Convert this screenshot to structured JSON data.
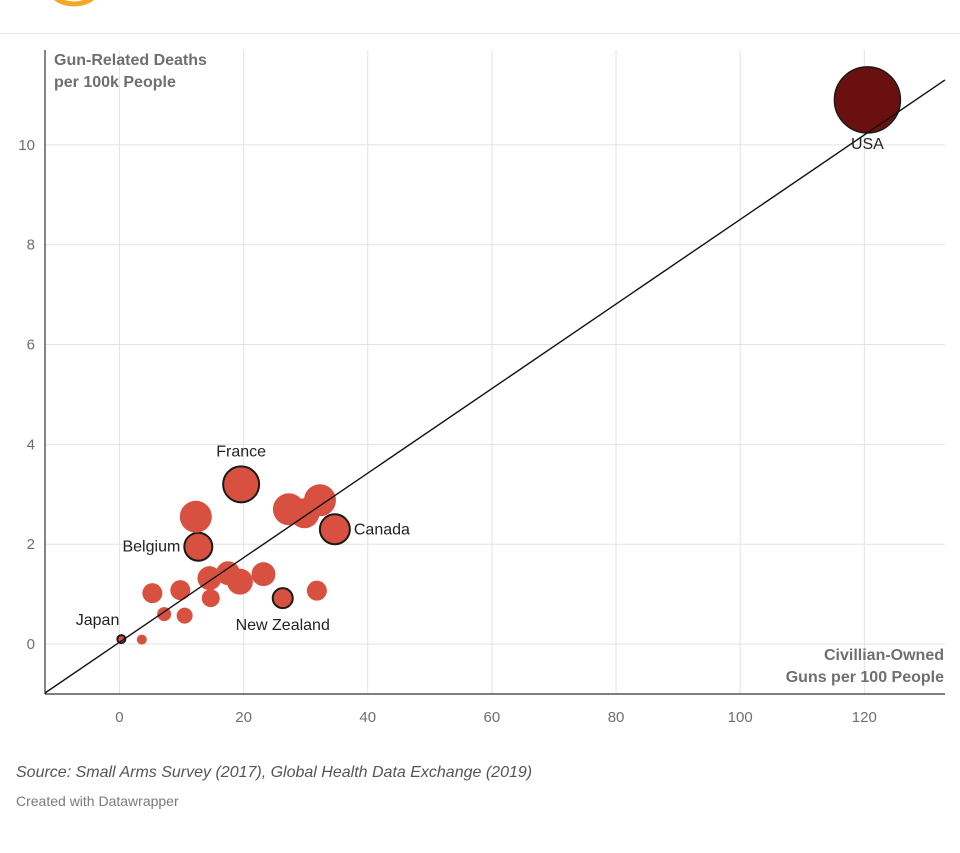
{
  "header": {
    "logo_color": "#f5a623"
  },
  "source_note": "Source: Small Arms Survey (2017), Global Health Data Exchange (2019)",
  "credit_note": "Created with Datawrapper",
  "colors": {
    "bubble": "#d8503f",
    "usa": "#6b1010",
    "outline": "#1a1a1a",
    "grid": "#e3e3e3",
    "line": "#111111"
  },
  "chart_data": {
    "type": "scatter",
    "ylabel_line1": "Gun-Related Deaths",
    "ylabel_line2": "per 100k People",
    "xlabel_line1": "Civillian-Owned",
    "xlabel_line2": "Guns per 100 People",
    "xlim": [
      -12,
      133
    ],
    "ylim": [
      -1,
      11.9
    ],
    "x_ticks": [
      0,
      20,
      40,
      60,
      80,
      100,
      120
    ],
    "y_ticks": [
      0,
      2,
      4,
      6,
      8,
      10
    ],
    "grid": true,
    "trend_line": [
      [
        -12,
        -0.98
      ],
      [
        133,
        11.3
      ]
    ],
    "points": [
      {
        "label": "USA",
        "x": 120.5,
        "y": 10.9,
        "r": 33,
        "highlight": true,
        "color": "usa",
        "label_pos": "below"
      },
      {
        "label": "France",
        "x": 19.6,
        "y": 3.2,
        "r": 18,
        "outline": true,
        "label_pos": "above"
      },
      {
        "label": "Canada",
        "x": 34.7,
        "y": 2.3,
        "r": 15,
        "outline": true,
        "label_pos": "right"
      },
      {
        "label": "Belgium",
        "x": 12.7,
        "y": 1.95,
        "r": 14,
        "outline": true,
        "label_pos": "left"
      },
      {
        "label": "New Zealand",
        "x": 26.3,
        "y": 0.92,
        "r": 10,
        "outline": true,
        "label_pos": "below"
      },
      {
        "label": "Japan",
        "x": 0.3,
        "y": 0.1,
        "r": 4,
        "outline": true,
        "label_pos": "left"
      },
      {
        "x": 12.3,
        "y": 2.55,
        "r": 16
      },
      {
        "x": 27.3,
        "y": 2.7,
        "r": 16
      },
      {
        "x": 29.8,
        "y": 2.62,
        "r": 15
      },
      {
        "x": 32.3,
        "y": 2.88,
        "r": 16
      },
      {
        "x": 14.5,
        "y": 1.32,
        "r": 12
      },
      {
        "x": 17.5,
        "y": 1.42,
        "r": 12
      },
      {
        "x": 19.4,
        "y": 1.25,
        "r": 13
      },
      {
        "x": 23.2,
        "y": 1.4,
        "r": 12
      },
      {
        "x": 5.3,
        "y": 1.02,
        "r": 10
      },
      {
        "x": 9.8,
        "y": 1.08,
        "r": 10
      },
      {
        "x": 14.7,
        "y": 0.92,
        "r": 9
      },
      {
        "x": 31.8,
        "y": 1.07,
        "r": 10
      },
      {
        "x": 7.2,
        "y": 0.6,
        "r": 7
      },
      {
        "x": 10.5,
        "y": 0.57,
        "r": 8
      },
      {
        "x": 3.6,
        "y": 0.09,
        "r": 5
      }
    ]
  }
}
